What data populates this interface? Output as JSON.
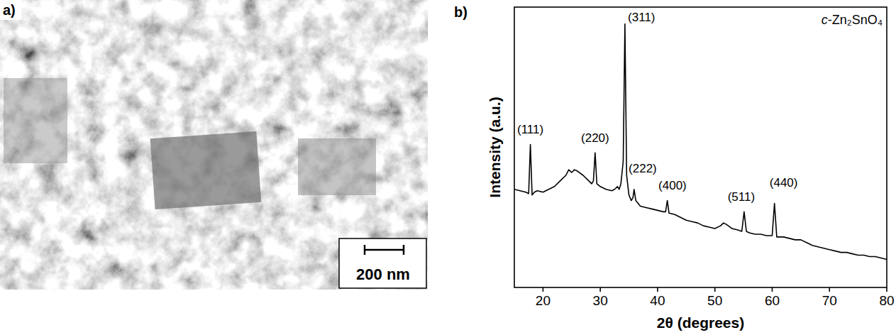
{
  "image": {
    "panel_label": "a)",
    "scale_bar_label": "200 nm"
  },
  "chart_data": {
    "type": "line",
    "panel_label": "b)",
    "x_label": "2θ (degrees)",
    "y_label": "Intensity (a.u.)",
    "xlim": [
      15,
      80
    ],
    "xticks": [
      20,
      30,
      40,
      50,
      60,
      70,
      80
    ],
    "ylim": [
      0,
      100
    ],
    "yticks": [],
    "tick_labels": "x",
    "grid": false,
    "color": "#000000",
    "x": [
      15,
      16,
      17,
      17.5,
      17.8,
      18.1,
      18.5,
      19,
      20,
      21,
      22,
      23,
      24,
      24.5,
      25,
      25.5,
      26,
      27,
      28,
      28.5,
      28.8,
      29.1,
      29.4,
      30,
      31,
      32,
      32.5,
      33,
      33.3,
      33.6,
      34,
      34.3,
      34.6,
      35,
      35.4,
      35.7,
      35.9,
      36.2,
      36.6,
      37,
      38,
      39,
      40,
      41,
      41.4,
      41.7,
      42,
      43,
      44,
      45,
      46,
      47,
      48,
      49,
      50,
      51,
      51.5,
      52,
      53,
      54,
      54.7,
      55.1,
      55.5,
      56,
      57,
      58,
      59,
      60,
      60.4,
      60.8,
      61,
      62,
      63,
      64,
      65,
      66,
      67,
      68,
      69,
      70,
      71,
      72,
      73,
      74,
      75,
      76,
      77,
      78,
      79,
      80
    ],
    "values": [
      35,
      34.5,
      34,
      33.5,
      51,
      33,
      34,
      34.5,
      34,
      35,
      36,
      38,
      40,
      42,
      41,
      42,
      41.5,
      40,
      38,
      37,
      38,
      48,
      37,
      36,
      35,
      34.5,
      35,
      36,
      35,
      37,
      45,
      94,
      40,
      33,
      31,
      32,
      35,
      31,
      30,
      29,
      28.5,
      28,
      27.5,
      27,
      27,
      31,
      26.5,
      26,
      25,
      24,
      23.5,
      23,
      22,
      21.5,
      21,
      22,
      23,
      22.5,
      21,
      20.5,
      20,
      27,
      20,
      19.5,
      19,
      19,
      18.5,
      18.5,
      30,
      18,
      18,
      18,
      17.5,
      17,
      17,
      16,
      15,
      14.5,
      14,
      13.5,
      13,
      12.5,
      12.5,
      12,
      11.5,
      11.5,
      11,
      11,
      10.5,
      10
    ],
    "annotations": [
      {
        "text": "(111)",
        "x": 17.8,
        "y": 55
      },
      {
        "text": "(220)",
        "x": 29.1,
        "y": 52
      },
      {
        "text": "(311)",
        "x": 37.2,
        "y": 95
      },
      {
        "text": "(222)",
        "x": 37.4,
        "y": 41
      },
      {
        "text": "(400)",
        "x": 42.6,
        "y": 35
      },
      {
        "text": "(511)",
        "x": 54.6,
        "y": 31
      },
      {
        "text": "(440)",
        "x": 62.0,
        "y": 36
      },
      {
        "text": "c-Zn₂SnO₄",
        "x": 75,
        "y": 94
      }
    ]
  }
}
